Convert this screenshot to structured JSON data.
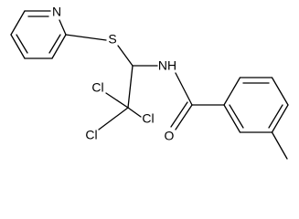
{
  "labels": {
    "pyridine_n": "N",
    "s": "S",
    "nh": "NH",
    "cl_1": "Cl",
    "cl_2": "Cl",
    "cl_3": "Cl",
    "o": "O"
  }
}
